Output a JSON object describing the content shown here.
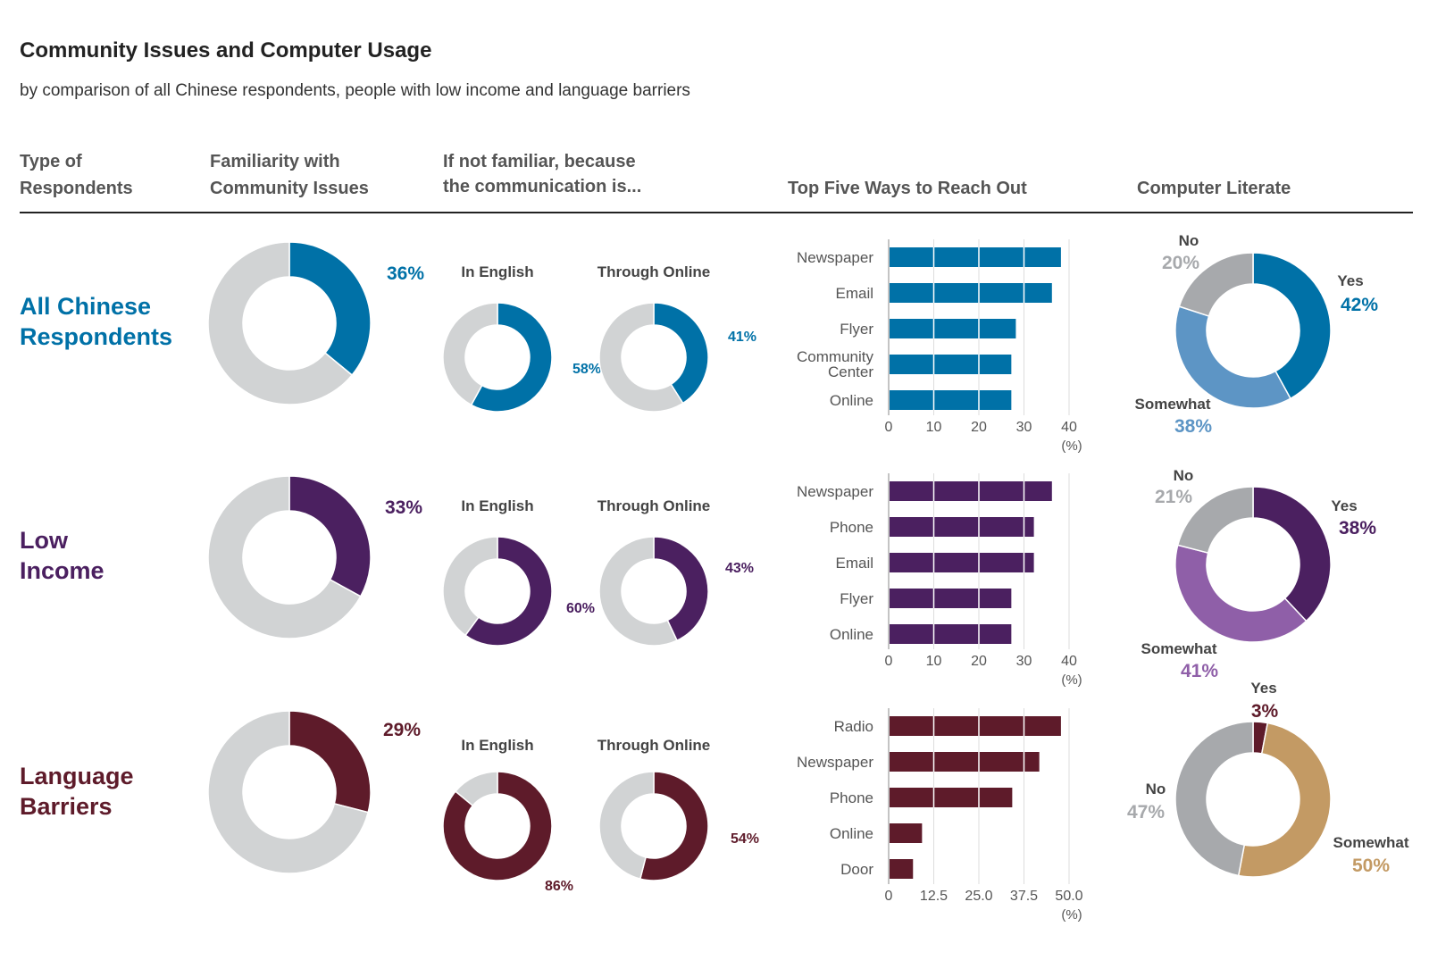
{
  "page": {
    "title": "Community Issues and Computer Usage",
    "subtitle": "by comparison of all Chinese respondents, people with low income and language barriers"
  },
  "headers": {
    "col1": [
      "Type of",
      "Respondents"
    ],
    "col2": [
      "Familiarity with",
      "Community Issues"
    ],
    "col3": [
      "If not familiar, because",
      "the communication is..."
    ],
    "col4": "Top Five Ways to Reach Out",
    "col5": "Computer Literate"
  },
  "colors": {
    "grey_light": "#d1d3d4",
    "grey_mid": "#a7a9ac",
    "header_text": "#555555",
    "all_dark": "#0071a7",
    "all_light": "#5d95c5",
    "low_dark": "#4b2060",
    "low_light": "#8f5fa8",
    "lang_dark": "#5e1b2a",
    "lang_light": "#c39a64"
  },
  "chart_data": [
    {
      "group": "All Chinese Respondents",
      "group_label": [
        "All Chinese",
        "Respondents"
      ],
      "familiarity": {
        "type": "pie",
        "label": "36%",
        "value": 36
      },
      "not_familiar": [
        {
          "type": "pie",
          "title": "In English",
          "label": "58%",
          "value": 58
        },
        {
          "type": "pie",
          "title": "Through Online",
          "label": "41%",
          "value": 41
        }
      ],
      "reach_out": {
        "type": "bar",
        "categories": [
          "Newspaper",
          "Email",
          "Flyer",
          "Community Center",
          "Online"
        ],
        "values": [
          38,
          36,
          28,
          27,
          27
        ],
        "ticks": [
          "0",
          "10",
          "20",
          "30",
          "40"
        ],
        "xlim": [
          0,
          40
        ],
        "unit": "(%)"
      },
      "computer_literate": {
        "type": "pie",
        "slices": [
          {
            "name": "Yes",
            "label": "42%",
            "value": 42
          },
          {
            "name": "Somewhat",
            "label": "38%",
            "value": 38
          },
          {
            "name": "No",
            "label": "20%",
            "value": 20
          }
        ]
      }
    },
    {
      "group": "Low Income",
      "group_label": [
        "Low",
        "Income"
      ],
      "familiarity": {
        "type": "pie",
        "label": "33%",
        "value": 33
      },
      "not_familiar": [
        {
          "type": "pie",
          "title": "In English",
          "label": "60%",
          "value": 60
        },
        {
          "type": "pie",
          "title": "Through Online",
          "label": "43%",
          "value": 43
        }
      ],
      "reach_out": {
        "type": "bar",
        "categories": [
          "Newspaper",
          "Phone",
          "Email",
          "Flyer",
          "Online"
        ],
        "values": [
          36,
          32,
          32,
          27,
          27
        ],
        "ticks": [
          "0",
          "10",
          "20",
          "30",
          "40"
        ],
        "xlim": [
          0,
          40
        ],
        "unit": "(%)"
      },
      "computer_literate": {
        "type": "pie",
        "slices": [
          {
            "name": "Yes",
            "label": "38%",
            "value": 38
          },
          {
            "name": "Somewhat",
            "label": "41%",
            "value": 41
          },
          {
            "name": "No",
            "label": "21%",
            "value": 21
          }
        ]
      }
    },
    {
      "group": "Language Barriers",
      "group_label": [
        "Language",
        "Barriers"
      ],
      "familiarity": {
        "type": "pie",
        "label": "29%",
        "value": 29
      },
      "not_familiar": [
        {
          "type": "pie",
          "title": "In English",
          "label": "86%",
          "value": 86
        },
        {
          "type": "pie",
          "title": "Through Online",
          "label": "54%",
          "value": 54
        }
      ],
      "reach_out": {
        "type": "bar",
        "categories": [
          "Radio",
          "Newspaper",
          "Phone",
          "Online",
          "Door"
        ],
        "values": [
          47.5,
          41.5,
          34,
          9,
          6.5
        ],
        "ticks": [
          "0",
          "12.5",
          "25.0",
          "37.5",
          "50.0"
        ],
        "xlim": [
          0,
          50
        ],
        "unit": "(%)"
      },
      "computer_literate": {
        "type": "pie",
        "slices": [
          {
            "name": "Yes",
            "label": "3%",
            "value": 3
          },
          {
            "name": "Somewhat",
            "label": "50%",
            "value": 50
          },
          {
            "name": "No",
            "label": "47%",
            "value": 47
          }
        ]
      }
    }
  ]
}
